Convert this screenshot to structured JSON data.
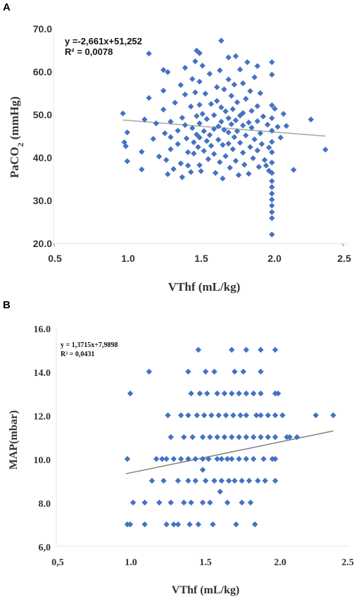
{
  "chart_data": [
    {
      "type": "scatter",
      "panel_label": "A",
      "xlabel": "VThf (mL/kg)",
      "ylabel": "PaCO2 (mmHg)",
      "ylabel_main": "PaCO",
      "ylabel_sub": "2",
      "ylabel_unit": " (mmHg)",
      "xlim": [
        0.5,
        2.5
      ],
      "ylim": [
        20,
        70
      ],
      "x_ticks": [
        "0.5",
        "1.0",
        "1.5",
        "2.0",
        "2.5"
      ],
      "y_ticks": [
        "20.0",
        "30.0",
        "40.0",
        "50.0",
        "60.0",
        "70.0"
      ],
      "equation": "y =-2,661x+51,252",
      "r_squared": "R² = 0,0078",
      "trend": {
        "intercept": 51.252,
        "slope": -2.661,
        "x_range": [
          0.97,
          2.37
        ]
      },
      "marker_color": "#4472C4",
      "trend_color": "#A6A6A6",
      "points": [
        [
          0.97,
          50.2
        ],
        [
          0.98,
          43.5
        ],
        [
          0.99,
          42.6
        ],
        [
          1.0,
          45.8
        ],
        [
          1.0,
          39.1
        ],
        [
          1.1,
          41.3
        ],
        [
          1.1,
          37.2
        ],
        [
          1.12,
          48.8
        ],
        [
          1.15,
          53.8
        ],
        [
          1.15,
          64.1
        ],
        [
          1.18,
          44.3
        ],
        [
          1.2,
          47.9
        ],
        [
          1.22,
          40.2
        ],
        [
          1.25,
          60.3
        ],
        [
          1.25,
          55.5
        ],
        [
          1.25,
          51.1
        ],
        [
          1.26,
          45.6
        ],
        [
          1.27,
          39.4
        ],
        [
          1.28,
          36.1
        ],
        [
          1.28,
          59.8
        ],
        [
          1.3,
          48.3
        ],
        [
          1.3,
          44.7
        ],
        [
          1.3,
          41.9
        ],
        [
          1.32,
          37.3
        ],
        [
          1.33,
          52.7
        ],
        [
          1.35,
          46.2
        ],
        [
          1.35,
          43.1
        ],
        [
          1.37,
          56.8
        ],
        [
          1.37,
          38.6
        ],
        [
          1.38,
          49.2
        ],
        [
          1.38,
          35.4
        ],
        [
          1.4,
          60.8
        ],
        [
          1.4,
          54.6
        ],
        [
          1.4,
          47.5
        ],
        [
          1.41,
          44.4
        ],
        [
          1.42,
          41.2
        ],
        [
          1.42,
          38.1
        ],
        [
          1.44,
          51.8
        ],
        [
          1.44,
          36.6
        ],
        [
          1.45,
          58.2
        ],
        [
          1.45,
          46.8
        ],
        [
          1.46,
          43.5
        ],
        [
          1.46,
          40.9
        ],
        [
          1.47,
          62.3
        ],
        [
          1.47,
          55.1
        ],
        [
          1.48,
          64.8
        ],
        [
          1.48,
          49.6
        ],
        [
          1.48,
          45.3
        ],
        [
          1.49,
          42.4
        ],
        [
          1.5,
          64.2
        ],
        [
          1.5,
          57.6
        ],
        [
          1.5,
          52.2
        ],
        [
          1.5,
          47.9
        ],
        [
          1.5,
          44.6
        ],
        [
          1.5,
          38.2
        ],
        [
          1.51,
          36.8
        ],
        [
          1.52,
          61.3
        ],
        [
          1.52,
          50.1
        ],
        [
          1.53,
          46.1
        ],
        [
          1.53,
          41.5
        ],
        [
          1.54,
          54.8
        ],
        [
          1.55,
          48.9
        ],
        [
          1.55,
          43.8
        ],
        [
          1.56,
          39.6
        ],
        [
          1.57,
          59.4
        ],
        [
          1.57,
          45.2
        ],
        [
          1.58,
          52.4
        ],
        [
          1.58,
          42.7
        ],
        [
          1.6,
          49.8
        ],
        [
          1.6,
          46.6
        ],
        [
          1.6,
          40.8
        ],
        [
          1.61,
          36.4
        ],
        [
          1.62,
          56.3
        ],
        [
          1.62,
          53.1
        ],
        [
          1.63,
          47.2
        ],
        [
          1.63,
          44.1
        ],
        [
          1.64,
          60.2
        ],
        [
          1.64,
          38.9
        ],
        [
          1.65,
          67.1
        ],
        [
          1.65,
          51.6
        ],
        [
          1.65,
          48.3
        ],
        [
          1.66,
          42.9
        ],
        [
          1.66,
          35.1
        ],
        [
          1.67,
          55.8
        ],
        [
          1.67,
          46.4
        ],
        [
          1.68,
          50.7
        ],
        [
          1.68,
          40.3
        ],
        [
          1.7,
          63.2
        ],
        [
          1.7,
          58.1
        ],
        [
          1.7,
          49.1
        ],
        [
          1.7,
          45.8
        ],
        [
          1.7,
          43.2
        ],
        [
          1.71,
          37.6
        ],
        [
          1.72,
          54.3
        ],
        [
          1.72,
          47.7
        ],
        [
          1.73,
          51.2
        ],
        [
          1.73,
          41.9
        ],
        [
          1.74,
          56.9
        ],
        [
          1.74,
          44.7
        ],
        [
          1.75,
          63.5
        ],
        [
          1.75,
          48.6
        ],
        [
          1.75,
          39.2
        ],
        [
          1.76,
          52.8
        ],
        [
          1.76,
          46.1
        ],
        [
          1.77,
          35.9
        ],
        [
          1.78,
          60.4
        ],
        [
          1.78,
          49.7
        ],
        [
          1.78,
          43.4
        ],
        [
          1.8,
          57.2
        ],
        [
          1.8,
          50.3
        ],
        [
          1.8,
          47.4
        ],
        [
          1.8,
          41.1
        ],
        [
          1.81,
          38.3
        ],
        [
          1.82,
          53.6
        ],
        [
          1.82,
          45.1
        ],
        [
          1.83,
          62.1
        ],
        [
          1.84,
          48.1
        ],
        [
          1.84,
          36.2
        ],
        [
          1.85,
          55.4
        ],
        [
          1.85,
          42.4
        ],
        [
          1.86,
          50.8
        ],
        [
          1.86,
          46.9
        ],
        [
          1.87,
          39.8
        ],
        [
          1.88,
          58.6
        ],
        [
          1.88,
          44.2
        ],
        [
          1.9,
          61.2
        ],
        [
          1.9,
          51.9
        ],
        [
          1.9,
          48.4
        ],
        [
          1.9,
          41.6
        ],
        [
          1.91,
          37.8
        ],
        [
          1.92,
          54.9
        ],
        [
          1.92,
          45.6
        ],
        [
          1.93,
          43.1
        ],
        [
          1.94,
          49.5
        ],
        [
          1.95,
          39.4
        ],
        [
          1.96,
          38.1
        ],
        [
          1.97,
          47.6
        ],
        [
          1.98,
          42.3
        ],
        [
          1.98,
          36.9
        ],
        [
          2.0,
          62.1
        ],
        [
          2.0,
          59.2
        ],
        [
          2.0,
          52.1
        ],
        [
          2.0,
          49.1
        ],
        [
          2.0,
          46.2
        ],
        [
          2.0,
          43.6
        ],
        [
          2.0,
          41.2
        ],
        [
          2.0,
          38.8
        ],
        [
          2.0,
          36.4
        ],
        [
          2.0,
          34.5
        ],
        [
          2.0,
          33.1
        ],
        [
          2.0,
          31.6
        ],
        [
          2.0,
          30.2
        ],
        [
          2.0,
          28.8
        ],
        [
          2.0,
          27.3
        ],
        [
          2.0,
          25.9
        ],
        [
          2.0,
          22.1
        ],
        [
          2.02,
          51.3
        ],
        [
          2.04,
          47.1
        ],
        [
          2.06,
          44.6
        ],
        [
          2.08,
          50.1
        ],
        [
          2.1,
          47.3
        ],
        [
          2.15,
          37.1
        ],
        [
          2.27,
          48.8
        ],
        [
          2.37,
          41.8
        ]
      ]
    },
    {
      "type": "scatter",
      "panel_label": "B",
      "xlabel": "VThf (mL/kg)",
      "ylabel": "MAP(mbar)",
      "xlim": [
        0.5,
        2.5
      ],
      "ylim": [
        6,
        16
      ],
      "x_ticks": [
        "0,5",
        "1.0",
        "1.5",
        "2.0",
        "2.5"
      ],
      "y_ticks": [
        "6,0",
        "8.0",
        "10.0",
        "12.0",
        "14.0",
        "16.0"
      ],
      "equation": "y = 1,3715x+7,9898",
      "r_squared": "R² = 0,0431",
      "trend": {
        "intercept": 7.9898,
        "slope": 1.3715,
        "x_range": [
          0.97,
          2.4
        ]
      },
      "marker_color": "#4472C4",
      "trend_color": "#808080",
      "points": [
        [
          0.98,
          7
        ],
        [
          1.0,
          7
        ],
        [
          0.98,
          10
        ],
        [
          1.0,
          13
        ],
        [
          1.02,
          8
        ],
        [
          1.1,
          7
        ],
        [
          1.1,
          8
        ],
        [
          1.13,
          14
        ],
        [
          1.15,
          9
        ],
        [
          1.18,
          10
        ],
        [
          1.2,
          8
        ],
        [
          1.22,
          10
        ],
        [
          1.23,
          9
        ],
        [
          1.25,
          7
        ],
        [
          1.25,
          10
        ],
        [
          1.26,
          12
        ],
        [
          1.28,
          11
        ],
        [
          1.28,
          8
        ],
        [
          1.3,
          7
        ],
        [
          1.3,
          10
        ],
        [
          1.33,
          7
        ],
        [
          1.33,
          9
        ],
        [
          1.35,
          12
        ],
        [
          1.35,
          10
        ],
        [
          1.37,
          8
        ],
        [
          1.37,
          11
        ],
        [
          1.4,
          14
        ],
        [
          1.4,
          12
        ],
        [
          1.4,
          10
        ],
        [
          1.4,
          9
        ],
        [
          1.41,
          7
        ],
        [
          1.42,
          13
        ],
        [
          1.42,
          8
        ],
        [
          1.43,
          11
        ],
        [
          1.45,
          10
        ],
        [
          1.45,
          9
        ],
        [
          1.46,
          12
        ],
        [
          1.47,
          15
        ],
        [
          1.47,
          7
        ],
        [
          1.48,
          13
        ],
        [
          1.5,
          11
        ],
        [
          1.5,
          8
        ],
        [
          1.5,
          10
        ],
        [
          1.5,
          9.5
        ],
        [
          1.51,
          12
        ],
        [
          1.52,
          14
        ],
        [
          1.52,
          9
        ],
        [
          1.53,
          13
        ],
        [
          1.54,
          10
        ],
        [
          1.55,
          11
        ],
        [
          1.55,
          8
        ],
        [
          1.56,
          12
        ],
        [
          1.57,
          7
        ],
        [
          1.58,
          9
        ],
        [
          1.58,
          14
        ],
        [
          1.6,
          10
        ],
        [
          1.6,
          13
        ],
        [
          1.6,
          11
        ],
        [
          1.61,
          12
        ],
        [
          1.62,
          8.5
        ],
        [
          1.63,
          9
        ],
        [
          1.63,
          10
        ],
        [
          1.65,
          11
        ],
        [
          1.65,
          13
        ],
        [
          1.66,
          12
        ],
        [
          1.67,
          10
        ],
        [
          1.67,
          8
        ],
        [
          1.68,
          9
        ],
        [
          1.7,
          15
        ],
        [
          1.7,
          13
        ],
        [
          1.7,
          11
        ],
        [
          1.7,
          10
        ],
        [
          1.71,
          12
        ],
        [
          1.72,
          14
        ],
        [
          1.72,
          9
        ],
        [
          1.73,
          7
        ],
        [
          1.75,
          13
        ],
        [
          1.75,
          11
        ],
        [
          1.75,
          10
        ],
        [
          1.76,
          12
        ],
        [
          1.77,
          8
        ],
        [
          1.77,
          9
        ],
        [
          1.78,
          14
        ],
        [
          1.8,
          15
        ],
        [
          1.8,
          13
        ],
        [
          1.8,
          12
        ],
        [
          1.8,
          11
        ],
        [
          1.8,
          10
        ],
        [
          1.82,
          9
        ],
        [
          1.83,
          8
        ],
        [
          1.85,
          13
        ],
        [
          1.85,
          11
        ],
        [
          1.85,
          10
        ],
        [
          1.86,
          7
        ],
        [
          1.87,
          12
        ],
        [
          1.88,
          9
        ],
        [
          1.9,
          15
        ],
        [
          1.9,
          14
        ],
        [
          1.9,
          13
        ],
        [
          1.9,
          12
        ],
        [
          1.9,
          11
        ],
        [
          1.92,
          10
        ],
        [
          1.93,
          9
        ],
        [
          1.95,
          12
        ],
        [
          1.95,
          11
        ],
        [
          1.98,
          10
        ],
        [
          2.0,
          15
        ],
        [
          2.0,
          13
        ],
        [
          2.0,
          12
        ],
        [
          2.0,
          11
        ],
        [
          2.0,
          10
        ],
        [
          2.0,
          9
        ],
        [
          2.02,
          13
        ],
        [
          2.05,
          12
        ],
        [
          2.08,
          11
        ],
        [
          2.1,
          11
        ],
        [
          2.15,
          11
        ],
        [
          2.28,
          12
        ],
        [
          2.4,
          12
        ]
      ]
    }
  ]
}
